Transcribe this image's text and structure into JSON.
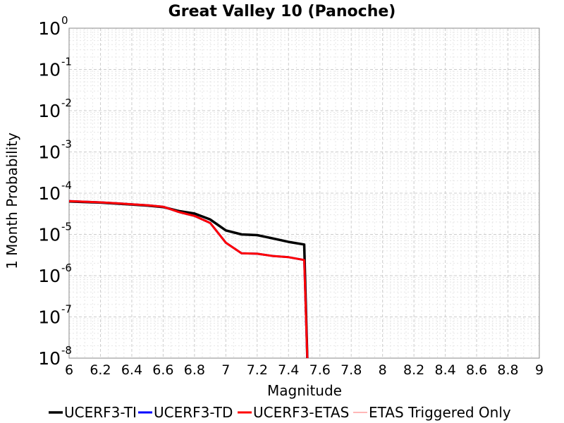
{
  "chart_data": {
    "type": "line",
    "title": "Great Valley 10 (Panoche)",
    "xlabel": "Magnitude",
    "ylabel": "1 Month Probability",
    "xlim": [
      6,
      9
    ],
    "ylim": [
      1e-08,
      1
    ],
    "yscale": "log",
    "grid": true,
    "legend_position": "bottom",
    "x_ticks": [
      "6",
      "6.2",
      "6.4",
      "6.6",
      "6.8",
      "7",
      "7.2",
      "7.4",
      "7.6",
      "7.8",
      "8",
      "8.2",
      "8.4",
      "8.6",
      "8.8",
      "9"
    ],
    "y_ticks": [
      {
        "base": "10",
        "exp": "0",
        "value": 1
      },
      {
        "base": "10",
        "exp": "-1",
        "value": 0.1
      },
      {
        "base": "10",
        "exp": "-2",
        "value": 0.01
      },
      {
        "base": "10",
        "exp": "-3",
        "value": 0.001
      },
      {
        "base": "10",
        "exp": "-4",
        "value": 0.0001
      },
      {
        "base": "10",
        "exp": "-5",
        "value": 1e-05
      },
      {
        "base": "10",
        "exp": "-6",
        "value": 1e-06
      },
      {
        "base": "10",
        "exp": "-7",
        "value": 1e-07
      },
      {
        "base": "10",
        "exp": "-8",
        "value": 1e-08
      }
    ],
    "series": [
      {
        "name": "UCERF3-TI",
        "color": "#000000",
        "x": [
          6.0,
          6.1,
          6.2,
          6.3,
          6.4,
          6.5,
          6.6,
          6.7,
          6.8,
          6.9,
          7.0,
          7.1,
          7.2,
          7.3,
          7.4,
          7.5,
          7.52
        ],
        "y": [
          6.3e-05,
          6.1e-05,
          5.9e-05,
          5.6e-05,
          5.3e-05,
          5e-05,
          4.6e-05,
          3.7e-05,
          3.2e-05,
          2.3e-05,
          1.25e-05,
          1e-05,
          9.6e-06,
          8e-06,
          6.6e-06,
          5.7e-06,
          1e-08
        ]
      },
      {
        "name": "UCERF3-TD",
        "color": "#0000ff",
        "x": [
          6.0,
          6.1,
          6.2,
          6.3,
          6.4,
          6.5,
          6.6,
          6.7,
          6.8,
          6.9,
          7.0,
          7.1,
          7.2,
          7.3,
          7.4,
          7.5,
          7.52
        ],
        "y": [
          6.4e-05,
          6.2e-05,
          6e-05,
          5.7e-05,
          5.4e-05,
          5.1e-05,
          4.7e-05,
          3.5e-05,
          2.8e-05,
          1.9e-05,
          6.3e-06,
          3.5e-06,
          3.4e-06,
          3e-06,
          2.8e-06,
          2.4e-06,
          1e-08
        ]
      },
      {
        "name": "UCERF3-ETAS",
        "color": "#ff0000",
        "x": [
          6.0,
          6.1,
          6.2,
          6.3,
          6.4,
          6.5,
          6.6,
          6.7,
          6.8,
          6.9,
          7.0,
          7.1,
          7.2,
          7.3,
          7.4,
          7.5,
          7.52
        ],
        "y": [
          6.4e-05,
          6.2e-05,
          6e-05,
          5.7e-05,
          5.4e-05,
          5.1e-05,
          4.7e-05,
          3.5e-05,
          2.8e-05,
          1.9e-05,
          6.3e-06,
          3.5e-06,
          3.4e-06,
          3e-06,
          2.8e-06,
          2.4e-06,
          1e-08
        ]
      },
      {
        "name": "ETAS Triggered Only",
        "color": "#ff6f6f",
        "x": [],
        "y": []
      }
    ]
  }
}
